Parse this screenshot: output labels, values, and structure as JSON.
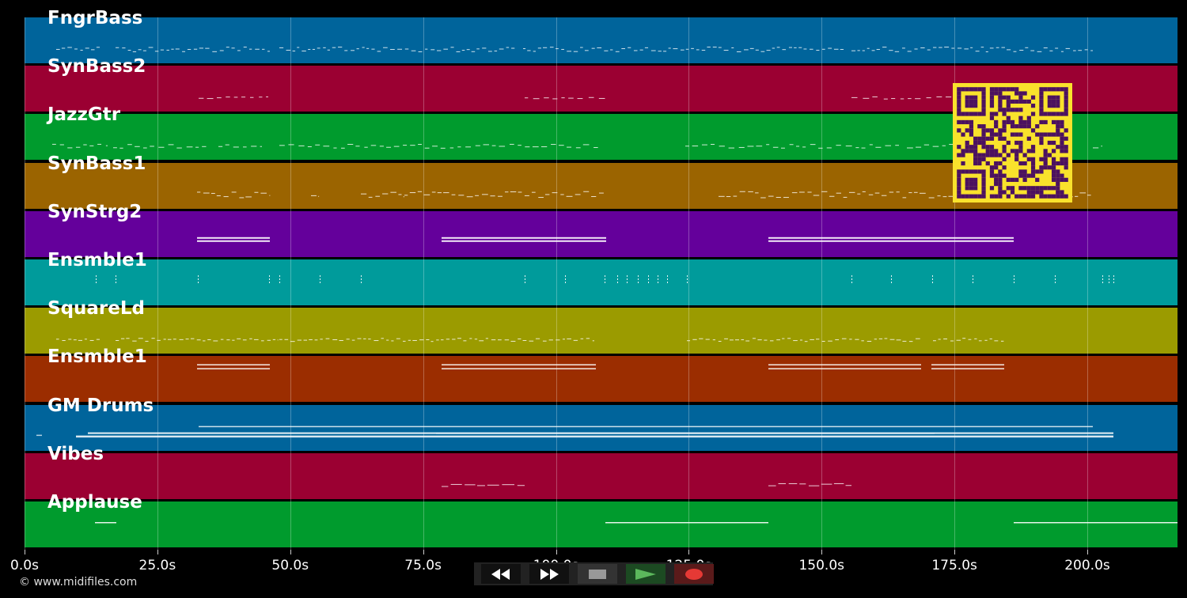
{
  "tracks": [
    {
      "name": "FngrBass",
      "color": "#00649b"
    },
    {
      "name": "SynBass2",
      "color": "#9b0032"
    },
    {
      "name": "JazzGtr",
      "color": "#009b2d"
    },
    {
      "name": "SynBass1",
      "color": "#9b6400"
    },
    {
      "name": "SynStrg2",
      "color": "#64009b"
    },
    {
      "name": "Ensmble1",
      "color": "#009b9b"
    },
    {
      "name": "SquareLd",
      "color": "#9b9b00"
    },
    {
      "name": "Ensmble1",
      "color": "#9b2d00"
    },
    {
      "name": "GM Drums",
      "color": "#00649b"
    },
    {
      "name": "Vibes",
      "color": "#9b0032"
    },
    {
      "name": "Applause",
      "color": "#009b2d"
    }
  ],
  "time_axis": {
    "max_seconds": 216.8,
    "ticks": [
      {
        "value": 0,
        "label": "0.0s"
      },
      {
        "value": 25,
        "label": "25.0s"
      },
      {
        "value": 50,
        "label": "50.0s"
      },
      {
        "value": 75,
        "label": "75.0s"
      },
      {
        "value": 100,
        "label": "100.0s"
      },
      {
        "value": 125,
        "label": "125.0s"
      },
      {
        "value": 150,
        "label": "150.0s"
      },
      {
        "value": 175,
        "label": "175.0s"
      },
      {
        "value": 200,
        "label": "200.0s"
      }
    ]
  },
  "transport": {
    "rewind_icon": "rewind-icon",
    "fast_forward_icon": "fast-forward-icon",
    "stop_icon": "stop-icon",
    "play_icon": "play-icon",
    "record_icon": "record-icon",
    "play_color": "#4caf50",
    "record_color": "#e53935"
  },
  "footer": {
    "copyright": "© www.midifiles.com"
  },
  "qr_code": {
    "icon": "qr-code-icon",
    "background": "#f9e22c",
    "foreground": "#4b1160"
  }
}
